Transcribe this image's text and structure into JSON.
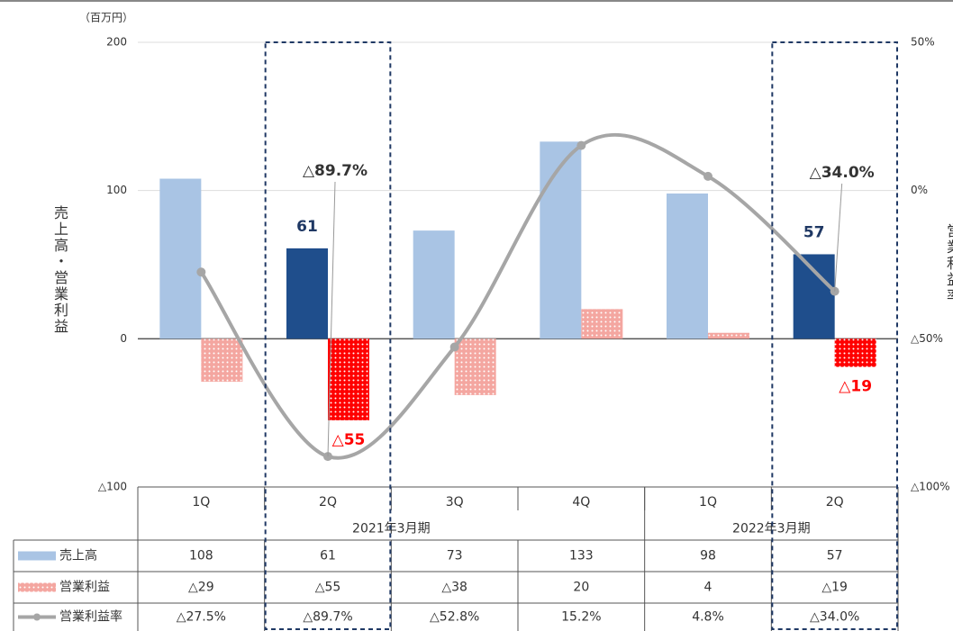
{
  "chart_data": {
    "type": "bar-line-table",
    "unit_label": "（百万円）",
    "y_axis_title": "売上高・営業利益",
    "y2_axis_title": "営業利益率",
    "categories": [
      "1Q",
      "2Q",
      "3Q",
      "4Q",
      "1Q",
      "2Q"
    ],
    "groups": [
      {
        "label": "2021年3月期",
        "span": 4
      },
      {
        "label": "2022年3月期",
        "span": 2
      }
    ],
    "highlight_indices": [
      1,
      5
    ],
    "ylim": [
      -100,
      200
    ],
    "yticks": [
      {
        "value": -100,
        "label": "△100"
      },
      0,
      100,
      200
    ],
    "y2lim": [
      -100,
      50
    ],
    "y2ticks": [
      {
        "value": -100,
        "label": "△100%"
      },
      {
        "value": -50,
        "label": "△50%"
      },
      {
        "value": 0,
        "label": "0%"
      },
      {
        "value": 50,
        "label": "50%"
      }
    ],
    "grid": true,
    "series": [
      {
        "name": "売上高",
        "kind": "bar",
        "color": "#a9c4e4",
        "highlight_color": "#1f4e8c",
        "values": [
          108,
          61,
          73,
          133,
          98,
          57
        ]
      },
      {
        "name": "営業利益",
        "kind": "bar",
        "color": "#f4a6a0",
        "highlight_color": "#ff0000",
        "values": [
          -29,
          -55,
          -38,
          20,
          4,
          -19
        ],
        "value_labels": [
          "△29",
          "△55",
          "△38",
          "20",
          "4",
          "△19"
        ]
      },
      {
        "name": "営業利益率",
        "kind": "line",
        "axis": "y2",
        "color": "#a6a6a6",
        "values": [
          -27.5,
          -89.7,
          -52.8,
          15.2,
          4.8,
          -34.0
        ],
        "value_labels": [
          "△27.5%",
          "△89.7%",
          "△52.8%",
          "15.2%",
          "4.8%",
          "△34.0%"
        ]
      }
    ]
  }
}
